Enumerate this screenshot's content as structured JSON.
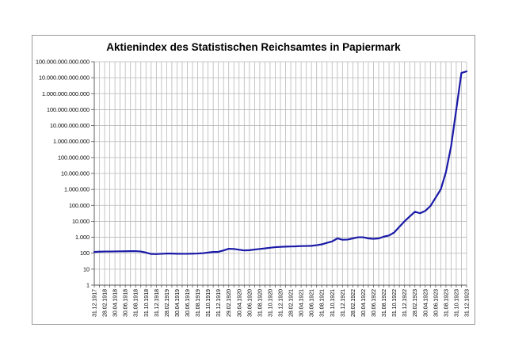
{
  "chart_data": {
    "type": "line",
    "title": "Aktienindex des Statistischen Reichsamtes in Papiermark",
    "xlabel": "",
    "ylabel": "",
    "y_scale": "log",
    "ylim": [
      1,
      100000000000000
    ],
    "grid": true,
    "legend": "none",
    "line_color": "#1a1aa8",
    "grid_color": "#b8b8b8",
    "y_tick_labels": [
      "1",
      "10",
      "100",
      "1.000",
      "10.000",
      "100.000",
      "1.000.000",
      "10.000.000",
      "100.000.000",
      "1.000.000.000",
      "10.000.000.000",
      "100.000.000.000",
      "1.000.000.000.000",
      "10.000.000.000.000",
      "100.000.000.000.000"
    ],
    "x_tick_labels": [
      "31.12.1917",
      "28.02.1918",
      "30.04.1918",
      "30.06.1918",
      "31.08.1918",
      "31.10.1918",
      "31.12.1918",
      "28.02.1919",
      "30.04.1919",
      "30.06.1919",
      "31.08.1919",
      "31.10.1919",
      "31.12.1919",
      "29.02.1920",
      "30.04.1920",
      "30.06.1920",
      "31.08.1920",
      "31.10.1920",
      "31.12.1920",
      "28.02.1921",
      "30.04.1921",
      "30.06.1921",
      "31.08.1921",
      "31.10.1921",
      "31.12.1921",
      "28.02.1922",
      "30.04.1922",
      "30.06.1922",
      "31.08.1922",
      "31.10.1922",
      "31.12.1922",
      "28.02.1923",
      "30.04.1923",
      "30.06.1923",
      "31.08.1923",
      "31.10.1923",
      "31.12.1923"
    ],
    "series": [
      {
        "x": [
          "31.12.1917",
          "31.01.1918",
          "28.02.1918",
          "31.03.1918",
          "30.04.1918",
          "31.05.1918",
          "30.06.1918",
          "31.07.1918",
          "31.08.1918",
          "30.09.1918",
          "31.10.1918",
          "30.11.1918",
          "31.12.1918",
          "31.01.1919",
          "28.02.1919",
          "31.03.1919",
          "30.04.1919",
          "31.05.1919",
          "30.06.1919",
          "31.07.1919",
          "31.08.1919",
          "30.09.1919",
          "31.10.1919",
          "30.11.1919",
          "31.12.1919",
          "31.01.1920",
          "29.02.1920",
          "31.03.1920",
          "30.04.1920",
          "31.05.1920",
          "30.06.1920",
          "31.07.1920",
          "31.08.1920",
          "30.09.1920",
          "31.10.1920",
          "30.11.1920",
          "31.12.1920",
          "31.01.1921",
          "28.02.1921",
          "31.03.1921",
          "30.04.1921",
          "31.05.1921",
          "30.06.1921",
          "31.07.1921",
          "31.08.1921",
          "30.09.1921",
          "31.10.1921",
          "30.11.1921",
          "31.12.1921",
          "31.01.1922",
          "28.02.1922",
          "31.03.1922",
          "30.04.1922",
          "31.05.1922",
          "30.06.1922",
          "31.07.1922",
          "31.08.1922",
          "30.09.1922",
          "31.10.1922",
          "30.11.1922",
          "31.12.1922",
          "31.01.1923",
          "28.02.1923",
          "31.03.1923",
          "30.04.1923",
          "31.05.1923",
          "30.06.1923",
          "31.07.1923",
          "31.08.1923",
          "30.09.1923",
          "31.10.1923",
          "30.11.1923",
          "31.12.1923"
        ],
        "values": [
          120,
          125,
          128,
          128,
          130,
          132,
          133,
          134,
          135,
          128,
          110,
          90,
          88,
          92,
          95,
          95,
          93,
          92,
          92,
          94,
          96,
          100,
          110,
          120,
          122,
          150,
          190,
          185,
          165,
          150,
          155,
          170,
          185,
          200,
          220,
          240,
          250,
          260,
          265,
          270,
          280,
          285,
          290,
          320,
          360,
          450,
          550,
          850,
          700,
          720,
          850,
          1000,
          1000,
          850,
          800,
          850,
          1100,
          1300,
          2000,
          4500,
          10000,
          20000,
          40000,
          32000,
          45000,
          90000,
          300000,
          1000000,
          12000000,
          500000000,
          100000000000,
          20000000000000,
          25000000000000
        ]
      }
    ]
  }
}
